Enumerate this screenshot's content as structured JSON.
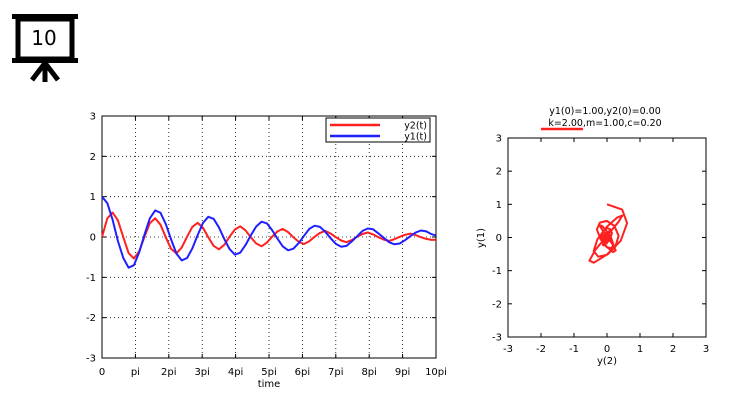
{
  "slide": {
    "number": "10",
    "icon": "presentation-board-icon"
  },
  "colors": {
    "y2": "#ff2020",
    "y1": "#2020ff",
    "axis": "#000000",
    "grid": "#000000",
    "background": "#ffffff"
  },
  "chart_data": [
    {
      "type": "line",
      "title": "",
      "xlabel": "time",
      "ylabel": "",
      "xlim": [
        0,
        31.4159
      ],
      "ylim": [
        -3,
        3
      ],
      "grid": true,
      "legend": "top-right",
      "x_ticks": [
        {
          "value": 0,
          "label": "0"
        },
        {
          "value": 3.14159,
          "label": "pi"
        },
        {
          "value": 6.28319,
          "label": "2pi"
        },
        {
          "value": 9.42478,
          "label": "3pi"
        },
        {
          "value": 12.5664,
          "label": "4pi"
        },
        {
          "value": 15.708,
          "label": "5pi"
        },
        {
          "value": 18.8496,
          "label": "6pi"
        },
        {
          "value": 21.9911,
          "label": "7pi"
        },
        {
          "value": 25.1327,
          "label": "8pi"
        },
        {
          "value": 28.2743,
          "label": "9pi"
        },
        {
          "value": 31.4159,
          "label": "10pi"
        }
      ],
      "y_ticks": [
        -3,
        -2,
        -1,
        0,
        1,
        2,
        3
      ],
      "series": [
        {
          "name": "y2(t)",
          "color": "#ff2020",
          "x": [
            0,
            0.5,
            1,
            1.5,
            2,
            2.5,
            3,
            3.5,
            4,
            4.5,
            5,
            5.5,
            6,
            6.5,
            7,
            7.5,
            8,
            8.5,
            9,
            9.5,
            10,
            10.5,
            11,
            11.5,
            12,
            12.5,
            13,
            13.5,
            14,
            14.5,
            15,
            15.5,
            16,
            16.5,
            17,
            17.5,
            18,
            18.5,
            19,
            19.5,
            20,
            20.5,
            21,
            21.5,
            22,
            22.5,
            23,
            23.5,
            24,
            24.5,
            25,
            25.5,
            26,
            26.5,
            27,
            27.5,
            28,
            28.5,
            29,
            29.5,
            30,
            30.5,
            31,
            31.4
          ],
          "values": [
            0,
            0.462,
            0.608,
            0.414,
            -0.005,
            -0.398,
            -0.532,
            -0.357,
            0.007,
            0.342,
            0.464,
            0.306,
            -0.008,
            -0.294,
            -0.404,
            -0.263,
            0.008,
            0.253,
            0.351,
            0.225,
            -0.008,
            -0.217,
            -0.305,
            -0.193,
            0.008,
            0.186,
            0.265,
            0.165,
            -0.008,
            -0.16,
            -0.23,
            -0.141,
            0.007,
            0.137,
            0.2,
            0.121,
            -0.007,
            -0.118,
            -0.173,
            -0.103,
            0.006,
            0.101,
            0.15,
            0.088,
            -0.006,
            -0.087,
            -0.13,
            -0.075,
            0.005,
            0.074,
            0.112,
            0.064,
            -0.005,
            -0.064,
            -0.097,
            -0.055,
            0.004,
            0.055,
            0.084,
            0.047,
            -0.004,
            -0.047,
            -0.072,
            -0.069
          ]
        },
        {
          "name": "y1(t)",
          "color": "#2020ff",
          "x": [
            0,
            0.5,
            1,
            1.5,
            2,
            2.5,
            3,
            3.5,
            4,
            4.5,
            5,
            5.5,
            6,
            6.5,
            7,
            7.5,
            8,
            8.5,
            9,
            9.5,
            10,
            10.5,
            11,
            11.5,
            12,
            12.5,
            13,
            13.5,
            14,
            14.5,
            15,
            15.5,
            16,
            16.5,
            17,
            17.5,
            18,
            18.5,
            19,
            19.5,
            20,
            20.5,
            21,
            21.5,
            22,
            22.5,
            23,
            23.5,
            24,
            24.5,
            25,
            25.5,
            26,
            26.5,
            27,
            27.5,
            28,
            28.5,
            29,
            29.5,
            30,
            30.5,
            31,
            31.4
          ],
          "values": [
            1,
            0.84,
            0.43,
            -0.1,
            -0.52,
            -0.76,
            -0.7,
            -0.38,
            0.06,
            0.46,
            0.66,
            0.6,
            0.32,
            -0.06,
            -0.41,
            -0.58,
            -0.52,
            -0.28,
            0.05,
            0.35,
            0.5,
            0.45,
            0.24,
            -0.05,
            -0.3,
            -0.44,
            -0.39,
            -0.2,
            0.04,
            0.26,
            0.38,
            0.34,
            0.17,
            -0.04,
            -0.23,
            -0.33,
            -0.29,
            -0.15,
            0.03,
            0.2,
            0.28,
            0.25,
            0.13,
            -0.03,
            -0.17,
            -0.24,
            -0.22,
            -0.11,
            0.02,
            0.15,
            0.21,
            0.19,
            0.09,
            -0.02,
            -0.13,
            -0.18,
            -0.16,
            -0.08,
            0.02,
            0.11,
            0.16,
            0.14,
            0.07,
            0.04
          ]
        }
      ]
    },
    {
      "type": "line",
      "title": "y1(0)=1.00,y2(0)=0.00",
      "subtitle": "k=2.00,m=1.00,c=0.20",
      "xlabel": "y(2)",
      "ylabel": "y(1)",
      "xlim": [
        -3,
        3
      ],
      "ylim": [
        -3,
        3
      ],
      "grid": false,
      "legend": "top",
      "x_ticks": [
        -3,
        -2,
        -1,
        0,
        1,
        2,
        3
      ],
      "y_ticks": [
        -3,
        -2,
        -1,
        0,
        1,
        2,
        3
      ],
      "series": [
        {
          "name": "",
          "color": "#ff2020",
          "x": [
            0,
            0.462,
            0.608,
            0.414,
            -0.005,
            -0.398,
            -0.532,
            -0.357,
            0.007,
            0.342,
            0.464,
            0.306,
            -0.008,
            -0.294,
            -0.404,
            -0.263,
            0.008,
            0.253,
            0.351,
            0.225,
            -0.008,
            -0.217,
            -0.305,
            -0.193,
            0.008,
            0.186,
            0.265,
            0.165,
            -0.008,
            -0.16,
            -0.23,
            -0.141,
            0.007,
            0.137,
            0.2,
            0.121,
            -0.007,
            -0.118,
            -0.173,
            -0.103,
            0.006,
            0.101,
            0.15,
            0.088,
            -0.006,
            -0.087,
            -0.13,
            -0.075,
            0.005,
            0.074,
            0.112,
            0.064,
            -0.005,
            -0.064,
            -0.097,
            -0.055,
            0.004,
            0.055,
            0.084,
            0.047,
            -0.004,
            -0.047,
            -0.072,
            -0.069
          ],
          "values": [
            1,
            0.84,
            0.43,
            -0.1,
            -0.52,
            -0.76,
            -0.7,
            -0.38,
            0.06,
            0.46,
            0.66,
            0.6,
            0.32,
            -0.06,
            -0.41,
            -0.58,
            -0.52,
            -0.28,
            0.05,
            0.35,
            0.5,
            0.45,
            0.24,
            -0.05,
            -0.3,
            -0.44,
            -0.39,
            -0.2,
            0.04,
            0.26,
            0.38,
            0.34,
            0.17,
            -0.04,
            -0.23,
            -0.33,
            -0.29,
            -0.15,
            0.03,
            0.2,
            0.28,
            0.25,
            0.13,
            -0.03,
            -0.17,
            -0.24,
            -0.22,
            -0.11,
            0.02,
            0.15,
            0.21,
            0.19,
            0.09,
            -0.02,
            -0.13,
            -0.18,
            -0.16,
            -0.08,
            0.02,
            0.11,
            0.16,
            0.14,
            0.07,
            0.04
          ]
        }
      ]
    }
  ]
}
